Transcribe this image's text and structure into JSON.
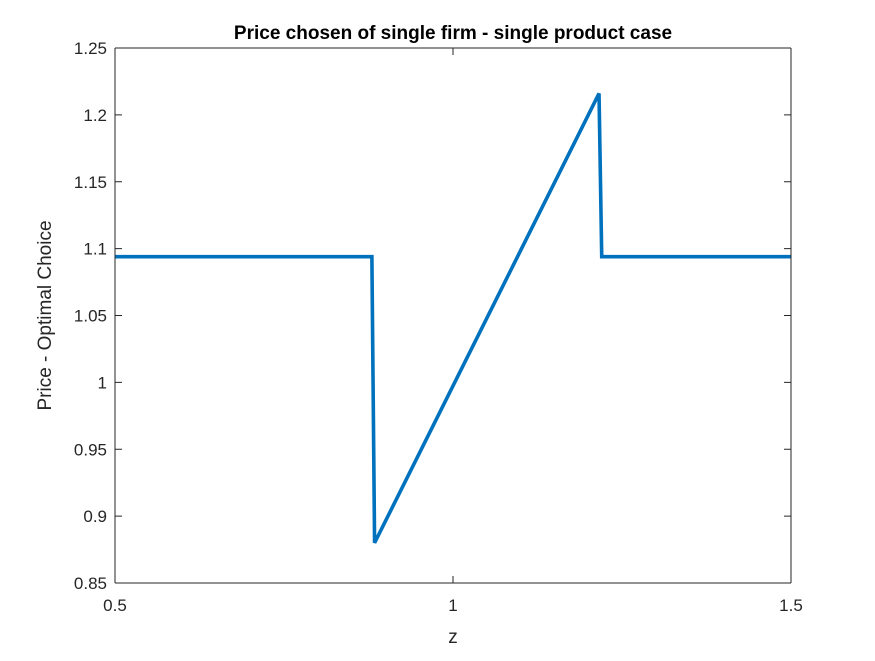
{
  "chart_data": {
    "type": "line",
    "title": "Price chosen of single firm - single product case",
    "xlabel": "z",
    "ylabel": "Price - Optimal Choice",
    "xlim": [
      0.5,
      1.5
    ],
    "ylim": [
      0.85,
      1.25
    ],
    "xticks": [
      0.5,
      1,
      1.5
    ],
    "xtick_labels": [
      "0.5",
      "1",
      "1.5"
    ],
    "yticks": [
      0.85,
      0.9,
      0.95,
      1,
      1.05,
      1.1,
      1.15,
      1.2,
      1.25
    ],
    "ytick_labels": [
      "0.85",
      "0.9",
      "0.95",
      "1",
      "1.05",
      "1.1",
      "1.15",
      "1.2",
      "1.25"
    ],
    "grid": false,
    "box": true,
    "series": [
      {
        "color": "#0072BD",
        "x": [
          0.5,
          0.88,
          0.884,
          1.216,
          1.22,
          1.5
        ],
        "y": [
          1.094,
          1.094,
          0.88,
          1.216,
          1.094,
          1.094
        ]
      }
    ]
  }
}
